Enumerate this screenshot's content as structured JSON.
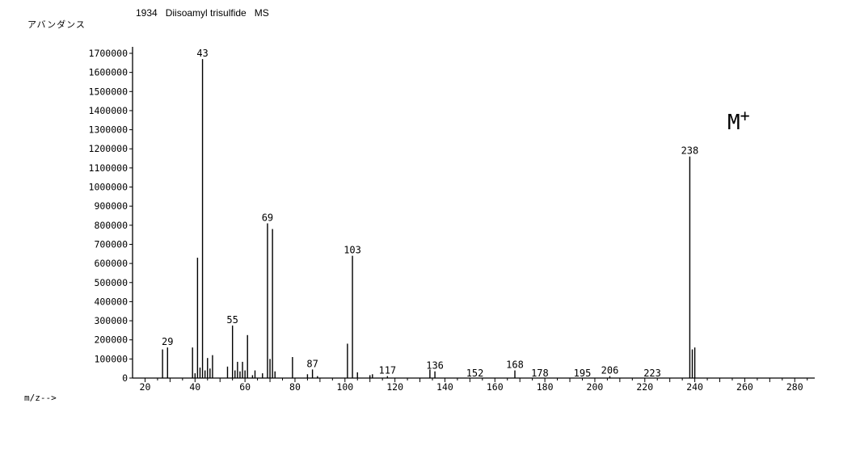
{
  "page": {
    "title": "1934   Diisoamyl trisulfide   MS"
  },
  "chart_data": {
    "type": "bar",
    "title": "1934   Diisoamyl trisulfide   MS",
    "ylabel": "アバンダンス",
    "xlabel": "m/z-->",
    "xlim": [
      15,
      288
    ],
    "ylim": [
      0,
      1700000
    ],
    "xticks": [
      20,
      40,
      60,
      80,
      100,
      120,
      140,
      160,
      180,
      200,
      220,
      240,
      260,
      280
    ],
    "yticks": [
      0,
      100000,
      200000,
      300000,
      400000,
      500000,
      600000,
      700000,
      800000,
      900000,
      1000000,
      1100000,
      1200000,
      1300000,
      1400000,
      1500000,
      1600000,
      1700000
    ],
    "grid": false,
    "annotation": "M+",
    "peaks": [
      {
        "mz": 27,
        "abundance": 150000
      },
      {
        "mz": 29,
        "abundance": 160000,
        "label": "29"
      },
      {
        "mz": 39,
        "abundance": 160000
      },
      {
        "mz": 40,
        "abundance": 25000
      },
      {
        "mz": 41,
        "abundance": 630000
      },
      {
        "mz": 42,
        "abundance": 55000
      },
      {
        "mz": 43,
        "abundance": 1670000,
        "label": "43"
      },
      {
        "mz": 44,
        "abundance": 40000
      },
      {
        "mz": 45,
        "abundance": 105000
      },
      {
        "mz": 46,
        "abundance": 50000
      },
      {
        "mz": 47,
        "abundance": 120000
      },
      {
        "mz": 53,
        "abundance": 60000
      },
      {
        "mz": 55,
        "abundance": 275000,
        "label": "55"
      },
      {
        "mz": 56,
        "abundance": 40000
      },
      {
        "mz": 57,
        "abundance": 85000
      },
      {
        "mz": 58,
        "abundance": 35000
      },
      {
        "mz": 59,
        "abundance": 85000
      },
      {
        "mz": 60,
        "abundance": 40000
      },
      {
        "mz": 61,
        "abundance": 225000
      },
      {
        "mz": 63,
        "abundance": 15000
      },
      {
        "mz": 64,
        "abundance": 40000
      },
      {
        "mz": 67,
        "abundance": 25000
      },
      {
        "mz": 69,
        "abundance": 810000,
        "label": "69"
      },
      {
        "mz": 70,
        "abundance": 100000
      },
      {
        "mz": 71,
        "abundance": 780000
      },
      {
        "mz": 72,
        "abundance": 35000
      },
      {
        "mz": 79,
        "abundance": 110000
      },
      {
        "mz": 85,
        "abundance": 20000
      },
      {
        "mz": 87,
        "abundance": 45000,
        "label": "87"
      },
      {
        "mz": 89,
        "abundance": 10000
      },
      {
        "mz": 101,
        "abundance": 180000
      },
      {
        "mz": 103,
        "abundance": 640000,
        "label": "103"
      },
      {
        "mz": 105,
        "abundance": 30000
      },
      {
        "mz": 110,
        "abundance": 15000
      },
      {
        "mz": 111,
        "abundance": 20000
      },
      {
        "mz": 117,
        "abundance": 10000,
        "label": "117"
      },
      {
        "mz": 134,
        "abundance": 45000
      },
      {
        "mz": 136,
        "abundance": 35000,
        "label": "136"
      },
      {
        "mz": 152,
        "abundance": 0,
        "label": "152"
      },
      {
        "mz": 168,
        "abundance": 40000,
        "label": "168"
      },
      {
        "mz": 178,
        "abundance": 0,
        "label": "178"
      },
      {
        "mz": 195,
        "abundance": 0,
        "label": "195"
      },
      {
        "mz": 206,
        "abundance": 10000,
        "label": "206"
      },
      {
        "mz": 223,
        "abundance": 0,
        "label": "223"
      },
      {
        "mz": 238,
        "abundance": 1160000,
        "label": "238"
      },
      {
        "mz": 239,
        "abundance": 150000
      },
      {
        "mz": 240,
        "abundance": 160000
      }
    ]
  }
}
